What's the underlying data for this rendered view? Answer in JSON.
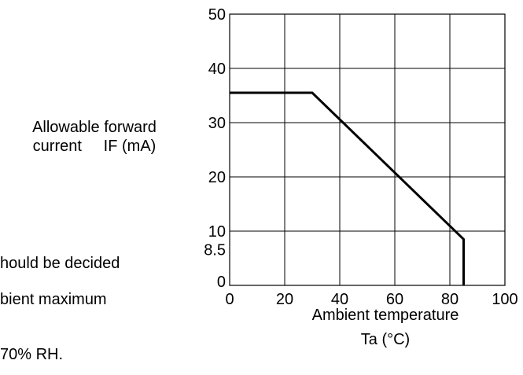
{
  "side_text": {
    "line1": "hould be decided",
    "line2": "bient maximum",
    "line3": "70% RH."
  },
  "chart_data": {
    "type": "line",
    "ylabel_line1": "Allowable forward",
    "ylabel_line2": "current     IF (mA)",
    "xlabel_line1": "Ambient temperature",
    "xlabel_line2": "Ta (°C)",
    "xlim": [
      0,
      100
    ],
    "ylim": [
      0,
      50
    ],
    "x_ticks": [
      "0",
      "20",
      "40",
      "60",
      "80",
      "100"
    ],
    "y_ticks": [
      "0",
      "10",
      "20",
      "30",
      "40",
      "50"
    ],
    "extra_y_tick": "8.5",
    "grid": true,
    "series": [
      {
        "x": [
          0,
          30,
          85,
          85
        ],
        "y": [
          35.5,
          35.5,
          8.5,
          0
        ]
      }
    ]
  }
}
